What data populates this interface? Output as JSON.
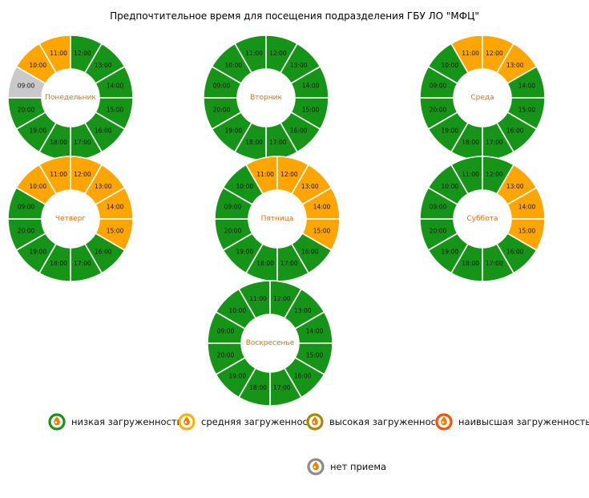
{
  "title": "Предпочтительное время для посещения подразделения ГБУ ЛО \"МФЦ\"",
  "hour_ring_order": [
    "11:00",
    "12:00",
    "13:00",
    "14:00",
    "15:00",
    "16:00",
    "17:00",
    "18:00",
    "19:00",
    "20:00",
    "09:00",
    "10:00"
  ],
  "status_colors": {
    "low": "#169417",
    "medium": "#ffa500",
    "none": "#c9c9c9"
  },
  "day_label_color": "#e4700e",
  "legend_flame_color": "#f07d00",
  "chart_data": [
    {
      "type": "pie",
      "title": "Понедельник",
      "categories": [
        "09:00",
        "10:00",
        "11:00",
        "12:00",
        "13:00",
        "14:00",
        "15:00",
        "16:00",
        "17:00",
        "18:00",
        "19:00",
        "20:00"
      ],
      "values": [
        "none",
        "medium",
        "medium",
        "low",
        "low",
        "low",
        "low",
        "low",
        "low",
        "low",
        "low",
        "low"
      ]
    },
    {
      "type": "pie",
      "title": "Вторник",
      "categories": [
        "09:00",
        "10:00",
        "11:00",
        "12:00",
        "13:00",
        "14:00",
        "15:00",
        "16:00",
        "17:00",
        "18:00",
        "19:00",
        "20:00"
      ],
      "values": [
        "low",
        "low",
        "low",
        "low",
        "low",
        "low",
        "low",
        "low",
        "low",
        "low",
        "low",
        "low"
      ]
    },
    {
      "type": "pie",
      "title": "Среда",
      "categories": [
        "09:00",
        "10:00",
        "11:00",
        "12:00",
        "13:00",
        "14:00",
        "15:00",
        "16:00",
        "17:00",
        "18:00",
        "19:00",
        "20:00"
      ],
      "values": [
        "low",
        "low",
        "medium",
        "medium",
        "medium",
        "low",
        "low",
        "low",
        "low",
        "low",
        "low",
        "low"
      ]
    },
    {
      "type": "pie",
      "title": "Четверг",
      "categories": [
        "09:00",
        "10:00",
        "11:00",
        "12:00",
        "13:00",
        "14:00",
        "15:00",
        "16:00",
        "17:00",
        "18:00",
        "19:00",
        "20:00"
      ],
      "values": [
        "low",
        "medium",
        "medium",
        "medium",
        "medium",
        "medium",
        "medium",
        "low",
        "low",
        "low",
        "low",
        "low"
      ]
    },
    {
      "type": "pie",
      "title": "Пятница",
      "categories": [
        "09:00",
        "10:00",
        "11:00",
        "12:00",
        "13:00",
        "14:00",
        "15:00",
        "16:00",
        "17:00",
        "18:00",
        "19:00",
        "20:00"
      ],
      "values": [
        "low",
        "low",
        "medium",
        "medium",
        "medium",
        "medium",
        "medium",
        "low",
        "low",
        "low",
        "low",
        "low"
      ]
    },
    {
      "type": "pie",
      "title": "Суббота",
      "categories": [
        "09:00",
        "10:00",
        "11:00",
        "12:00",
        "13:00",
        "14:00",
        "15:00",
        "16:00",
        "17:00",
        "18:00",
        "19:00",
        "20:00"
      ],
      "values": [
        "low",
        "low",
        "low",
        "low",
        "medium",
        "medium",
        "medium",
        "low",
        "low",
        "low",
        "low",
        "low"
      ]
    },
    {
      "type": "pie",
      "title": "Воскресенье",
      "categories": [
        "09:00",
        "10:00",
        "11:00",
        "12:00",
        "13:00",
        "14:00",
        "15:00",
        "16:00",
        "17:00",
        "18:00",
        "19:00",
        "20:00"
      ],
      "values": [
        "low",
        "low",
        "low",
        "low",
        "low",
        "low",
        "low",
        "low",
        "low",
        "low",
        "low",
        "low"
      ]
    }
  ],
  "legend": [
    {
      "label": "низкая загруженность",
      "ring_color": "#169417"
    },
    {
      "label": "средняя загруженность",
      "ring_color": "#ffb200"
    },
    {
      "label": "высокая загруженность",
      "ring_color": "#a38b00"
    },
    {
      "label": "наивысшая загруженность",
      "ring_color": "#ff4f00"
    },
    {
      "label": "нет приема",
      "ring_color": "#8c8c8c"
    }
  ]
}
